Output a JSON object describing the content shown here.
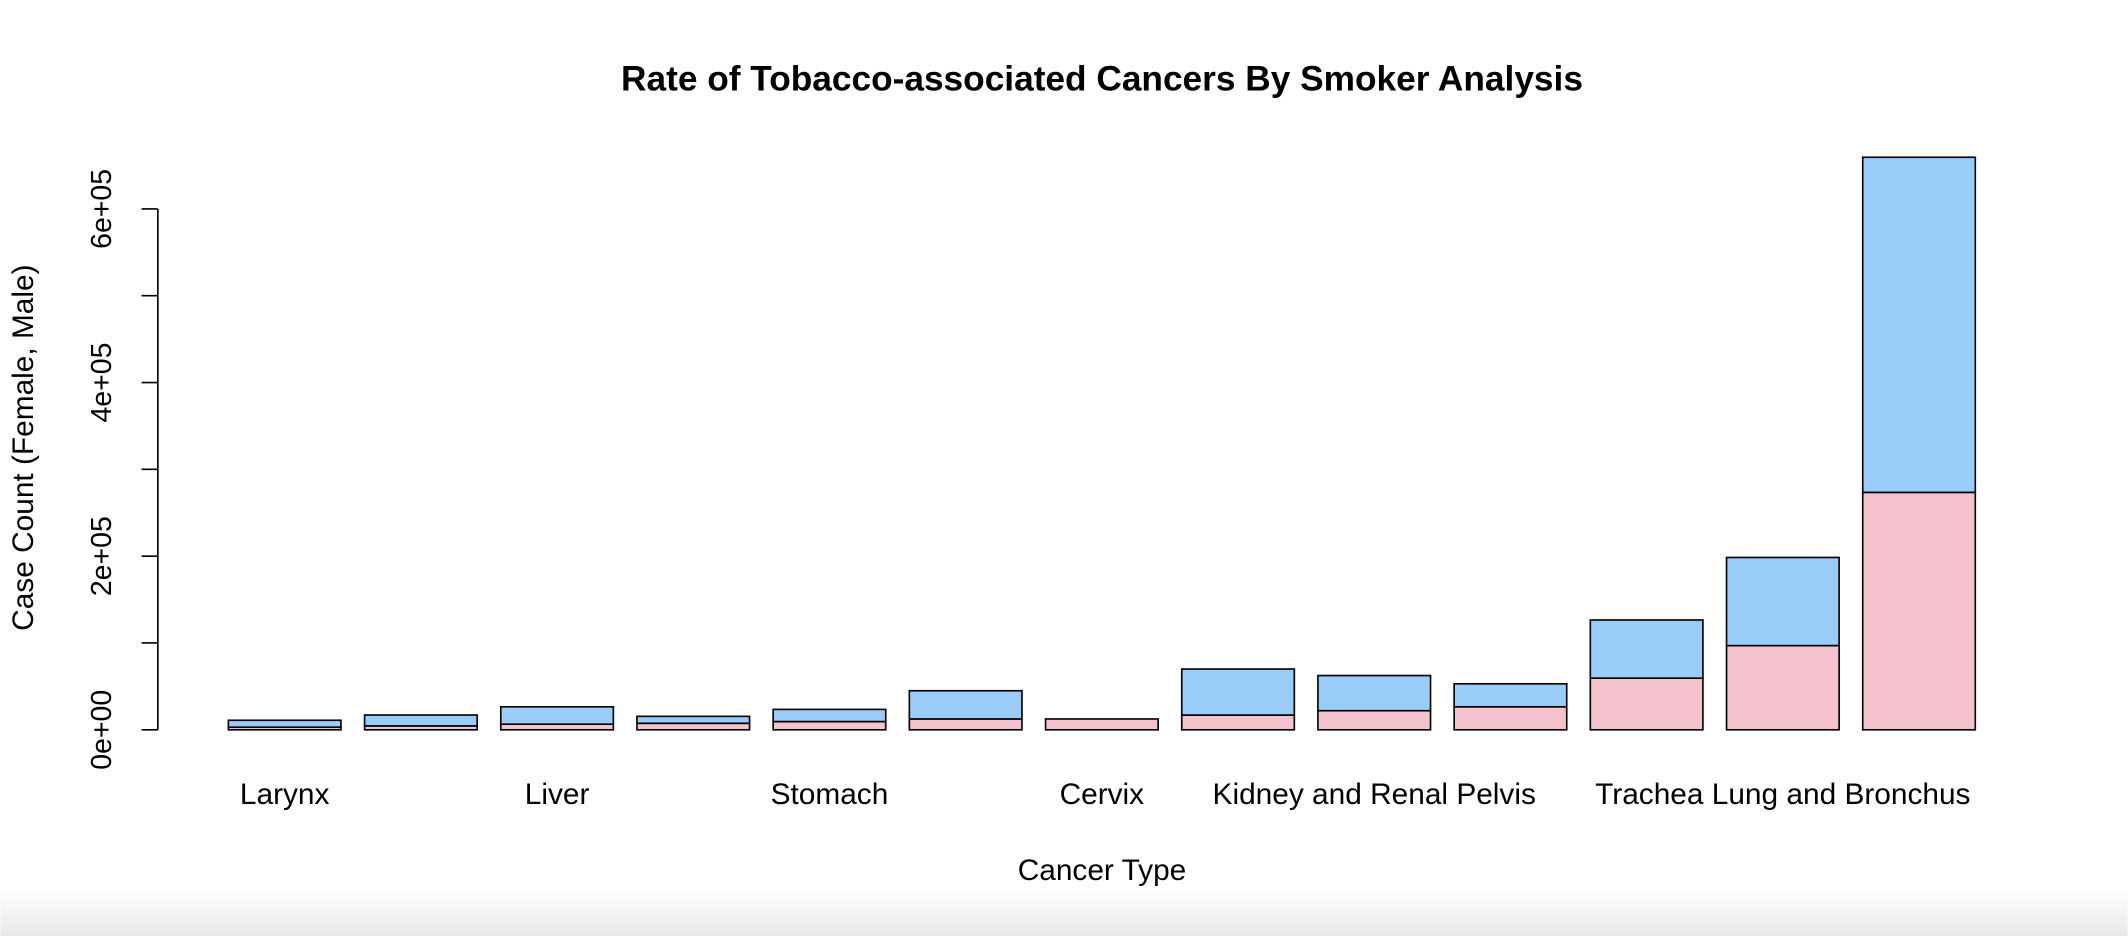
{
  "chart_data": {
    "type": "stacked_bar",
    "title": "Rate of Tobacco-associated Cancers By Smoker Analysis",
    "x_label": "Cancer Type",
    "y_label": "Case Count (Female, Male)",
    "categories": [
      "Larynx",
      null,
      "Liver",
      null,
      "Stomach",
      null,
      "Cervix",
      null,
      "Kidney and Renal Pelvis",
      null,
      null,
      "Trachea Lung and Bronchus",
      null
    ],
    "series": [
      {
        "color": "#f4c2cc",
        "values": [
          3000,
          4500,
          6500,
          7500,
          9500,
          12500,
          12500,
          17000,
          22000,
          26500,
          59500,
          97000,
          273500
        ]
      },
      {
        "color": "#99ccf9",
        "values": [
          8000,
          12500,
          20000,
          8000,
          14000,
          32500,
          0,
          53000,
          40500,
          26500,
          67000,
          101500,
          386000
        ]
      }
    ],
    "ylim": [
      0,
      600000
    ],
    "yticks": [
      {
        "value": 0,
        "label": "0e+00"
      },
      {
        "value": 200000,
        "label": "2e+05"
      },
      {
        "value": 400000,
        "label": "4e+05"
      },
      {
        "value": 600000,
        "label": "6e+05"
      }
    ],
    "yminorticks": [
      100000,
      300000,
      500000
    ]
  }
}
